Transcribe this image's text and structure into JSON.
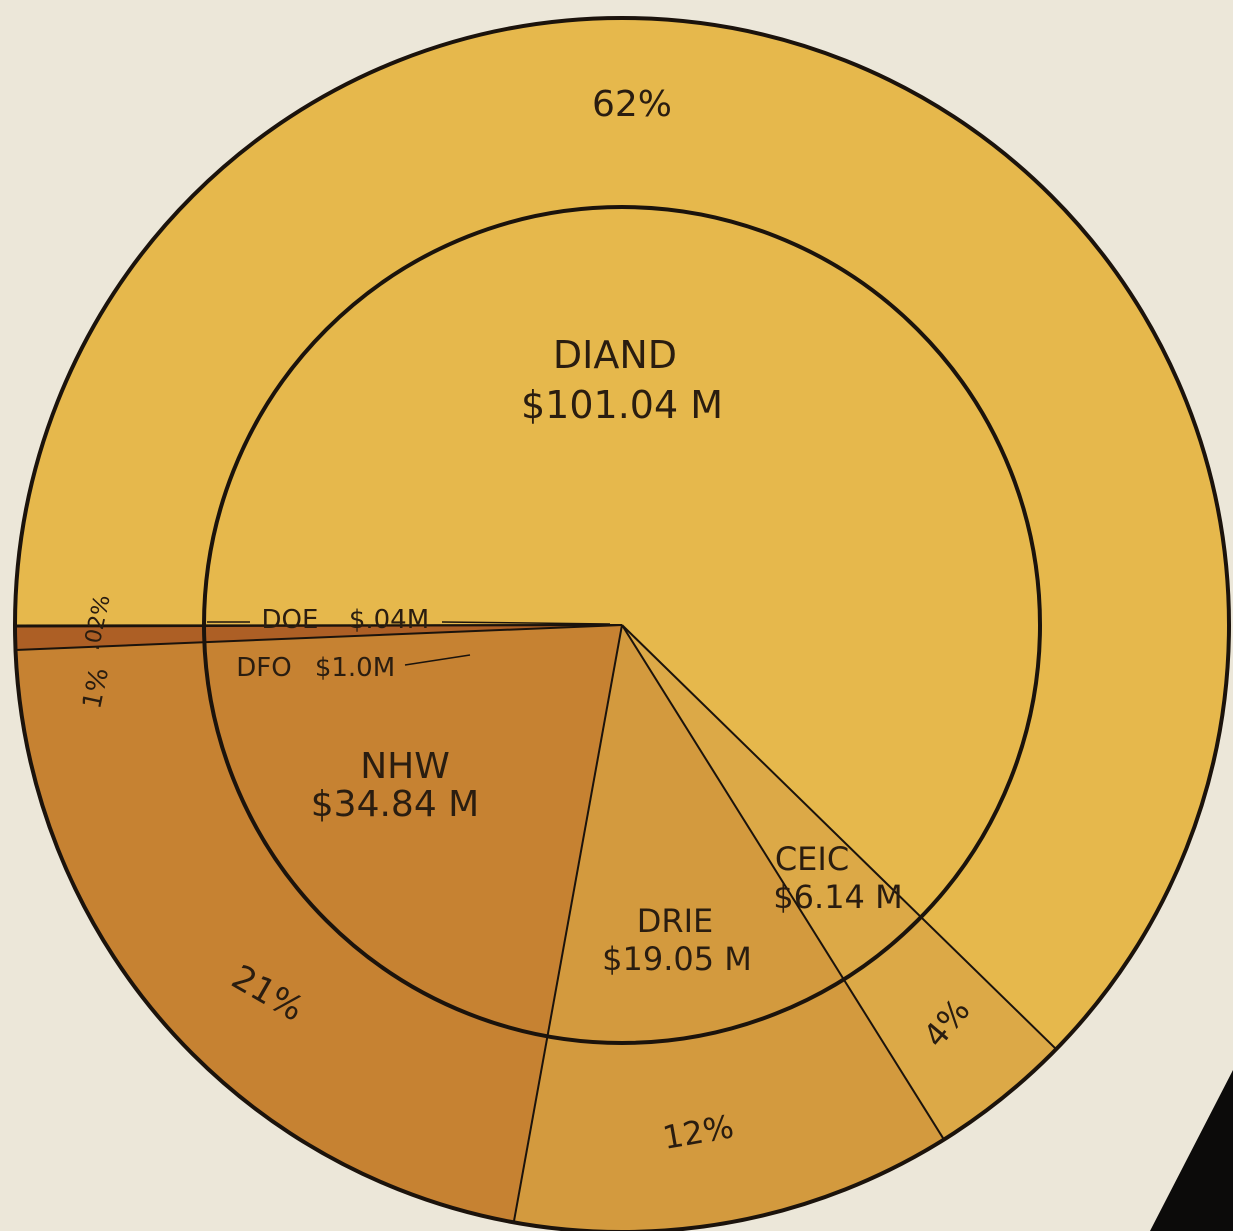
{
  "chart_data": {
    "type": "pie",
    "title": "",
    "total_label": "",
    "colors": {
      "background": "#ece7d9",
      "outline": "#1b130c",
      "corner": "#0c0b0a"
    },
    "slices": [
      {
        "name": "DIAND",
        "value": 101.04,
        "label": "DIAND",
        "amount": "$101.04 M",
        "percent": "62%",
        "color": "#e6b84c"
      },
      {
        "name": "CEIC",
        "value": 6.14,
        "label": "CEIC",
        "amount": "$6.14 M",
        "percent": "4%",
        "color": "#dca947"
      },
      {
        "name": "DRIE",
        "value": 19.05,
        "label": "DRIE",
        "amount": "$19.05 M",
        "percent": "12%",
        "color": "#d39a3e"
      },
      {
        "name": "NHW",
        "value": 34.84,
        "label": "NHW",
        "amount": "$34.84 M",
        "percent": "21%",
        "color": "#c68232"
      },
      {
        "name": "DFO",
        "value": 1.0,
        "label": "DFO",
        "amount": "$1.0M",
        "percent": "1%",
        "color": "#ad5f25"
      },
      {
        "name": "DOE",
        "value": 0.04,
        "label": "DOE",
        "amount": "$.04M",
        "percent": ".02%",
        "color": "#8e3417"
      }
    ]
  }
}
